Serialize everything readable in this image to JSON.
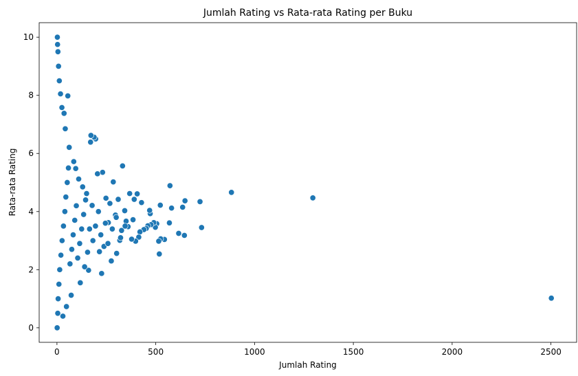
{
  "chart_data": {
    "type": "scatter",
    "title": "Jumlah Rating vs Rata-rata Rating per Buku",
    "xlabel": "Jumlah Rating",
    "ylabel": "Rata-rata Rating",
    "xlim": [
      -90,
      2630
    ],
    "ylim": [
      -0.5,
      10.5
    ],
    "xticks": [
      0,
      500,
      1000,
      1500,
      2000,
      2500
    ],
    "yticks": [
      0,
      2,
      4,
      6,
      8,
      10
    ],
    "grid": false,
    "legend": "none",
    "marker_color": "#1f77b4",
    "marker_edge_color": "#ffffff",
    "points": [
      [
        2502,
        1.02
      ],
      [
        1295,
        4.47
      ],
      [
        883,
        4.66
      ],
      [
        732,
        3.45
      ],
      [
        724,
        4.34
      ],
      [
        648,
        4.37
      ],
      [
        645,
        3.18
      ],
      [
        636,
        4.15
      ],
      [
        616,
        3.25
      ],
      [
        580,
        4.12
      ],
      [
        572,
        4.89
      ],
      [
        569,
        3.61
      ],
      [
        544,
        3.04
      ],
      [
        525,
        3.06
      ],
      [
        523,
        4.22
      ],
      [
        518,
        2.54
      ],
      [
        515,
        2.98
      ],
      [
        505,
        3.58
      ],
      [
        498,
        3.46
      ],
      [
        490,
        3.62
      ],
      [
        476,
        3.55
      ],
      [
        472,
        3.93
      ],
      [
        469,
        4.04
      ],
      [
        460,
        3.51
      ],
      [
        452,
        3.42
      ],
      [
        440,
        3.38
      ],
      [
        428,
        4.31
      ],
      [
        420,
        3.3
      ],
      [
        414,
        3.12
      ],
      [
        406,
        4.61
      ],
      [
        398,
        2.98
      ],
      [
        391,
        4.42
      ],
      [
        385,
        3.72
      ],
      [
        378,
        3.05
      ],
      [
        368,
        4.62
      ],
      [
        360,
        3.48
      ],
      [
        350,
        3.67
      ],
      [
        343,
        4.03
      ],
      [
        332,
        5.57
      ],
      [
        327,
        3.35
      ],
      [
        318,
        3.01
      ],
      [
        310,
        4.42
      ],
      [
        302,
        2.56
      ],
      [
        296,
        3.88
      ],
      [
        285,
        5.02
      ],
      [
        275,
        2.3
      ],
      [
        268,
        4.28
      ],
      [
        260,
        3.62
      ],
      [
        248,
        4.46
      ],
      [
        238,
        2.8
      ],
      [
        231,
        5.35
      ],
      [
        226,
        1.87
      ],
      [
        215,
        2.62
      ],
      [
        205,
        5.3
      ],
      [
        196,
        6.5
      ],
      [
        188,
        6.56
      ],
      [
        178,
        4.21
      ],
      [
        172,
        6.62
      ],
      [
        170,
        6.39
      ],
      [
        165,
        3.4
      ],
      [
        160,
        1.98
      ],
      [
        150,
        4.62
      ],
      [
        140,
        2.1
      ],
      [
        130,
        4.85
      ],
      [
        118,
        1.55
      ],
      [
        110,
        5.12
      ],
      [
        95,
        5.48
      ],
      [
        85,
        5.72
      ],
      [
        72,
        1.12
      ],
      [
        62,
        6.21
      ],
      [
        55,
        7.98
      ],
      [
        48,
        0.73
      ],
      [
        42,
        6.85
      ],
      [
        36,
        7.38
      ],
      [
        30,
        0.4
      ],
      [
        25,
        7.58
      ],
      [
        18,
        8.05
      ],
      [
        12,
        8.5
      ],
      [
        8,
        9.0
      ],
      [
        5,
        9.5
      ],
      [
        3,
        9.75
      ],
      [
        2,
        10.0
      ],
      [
        1,
        0.0
      ],
      [
        4,
        0.5
      ],
      [
        6,
        1.0
      ],
      [
        10,
        1.5
      ],
      [
        14,
        2.0
      ],
      [
        20,
        2.5
      ],
      [
        26,
        3.0
      ],
      [
        33,
        3.5
      ],
      [
        40,
        4.0
      ],
      [
        45,
        4.5
      ],
      [
        52,
        5.0
      ],
      [
        58,
        5.5
      ],
      [
        66,
        2.2
      ],
      [
        75,
        2.7
      ],
      [
        82,
        3.2
      ],
      [
        90,
        3.7
      ],
      [
        98,
        4.2
      ],
      [
        105,
        2.4
      ],
      [
        115,
        2.9
      ],
      [
        125,
        3.4
      ],
      [
        135,
        3.9
      ],
      [
        145,
        4.4
      ],
      [
        155,
        2.6
      ],
      [
        182,
        3.0
      ],
      [
        195,
        3.5
      ],
      [
        210,
        4.0
      ],
      [
        222,
        3.2
      ],
      [
        245,
        3.6
      ],
      [
        258,
        2.9
      ],
      [
        280,
        3.4
      ],
      [
        300,
        3.8
      ],
      [
        322,
        3.1
      ],
      [
        345,
        3.5
      ]
    ]
  }
}
